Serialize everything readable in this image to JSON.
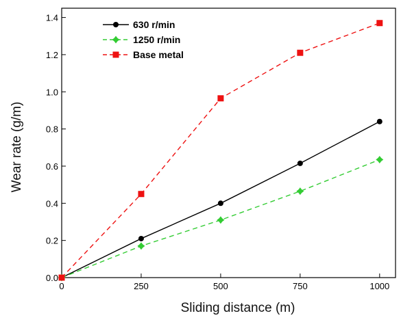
{
  "chart_data": {
    "type": "line",
    "title": "",
    "xlabel": "Sliding distance (m)",
    "ylabel": "Wear rate (g/m)",
    "xlim": [
      0,
      1050
    ],
    "ylim": [
      0,
      1.45
    ],
    "xticks": [
      0,
      250,
      500,
      750,
      1000
    ],
    "yticks": [
      0.0,
      0.2,
      0.4,
      0.6,
      0.8,
      1.0,
      1.2,
      1.4
    ],
    "xtick_labels": [
      "0",
      "250",
      "500",
      "750",
      "1000"
    ],
    "ytick_labels": [
      "0.0",
      "0.2",
      "0.4",
      "0.6",
      "0.8",
      "1.0",
      "1.2",
      "1.4"
    ],
    "grid": false,
    "legend_position": "top-left",
    "series": [
      {
        "name": "630 r/min",
        "color": "#000000",
        "marker": "circle",
        "line_style": "solid",
        "x": [
          0,
          250,
          500,
          750,
          1000
        ],
        "y": [
          0.0,
          0.21,
          0.4,
          0.615,
          0.84
        ]
      },
      {
        "name": "1250 r/min",
        "color": "#33cc33",
        "marker": "star",
        "line_style": "dashed",
        "x": [
          0,
          250,
          500,
          750,
          1000
        ],
        "y": [
          0.0,
          0.17,
          0.31,
          0.465,
          0.635
        ]
      },
      {
        "name": "Base metal",
        "color": "#ee1111",
        "marker": "square",
        "line_style": "dashed",
        "x": [
          0,
          250,
          500,
          750,
          1000
        ],
        "y": [
          0.0,
          0.45,
          0.965,
          1.21,
          1.37
        ]
      }
    ]
  }
}
